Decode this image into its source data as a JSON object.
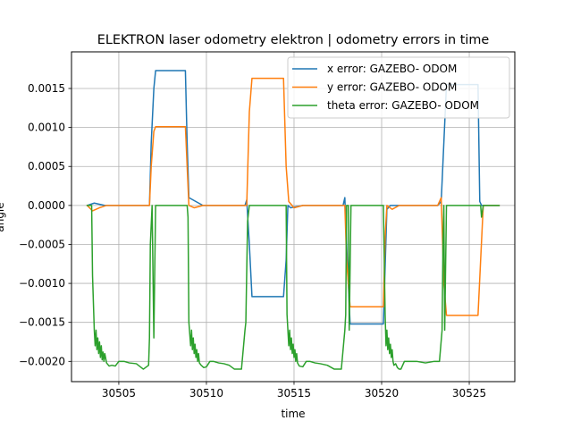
{
  "chart_data": {
    "type": "line",
    "title": "ELEKTRON laser odometry elektron | odometry errors in time",
    "xlabel": "time",
    "ylabel": "angle",
    "xlim": [
      30502.3,
      30527.6
    ],
    "ylim": [
      -0.00226,
      0.00197
    ],
    "xticks": [
      30505,
      30510,
      30515,
      30520,
      30525
    ],
    "yticks": [
      -0.002,
      -0.0015,
      -0.001,
      -0.0005,
      0.0,
      0.0005,
      0.001,
      0.0015
    ],
    "ytick_labels": [
      "−0.0020",
      "−0.0015",
      "−0.0010",
      "−0.0005",
      "0.0000",
      "0.0005",
      "0.0010",
      "0.0015"
    ],
    "grid": true,
    "legend_position": "upper right",
    "series": [
      {
        "name": "x error: GAZEBO- ODOM",
        "color": "#1f77b4",
        "x": [
          30503.2,
          30503.6,
          30504.2,
          30504.8,
          30505.5,
          30506.3,
          30506.75,
          30506.85,
          30507.0,
          30507.1,
          30508.8,
          30508.9,
          30509.0,
          30509.4,
          30509.8,
          30510.5,
          30511.2,
          30512.2,
          30512.3,
          30512.45,
          30512.6,
          30514.4,
          30514.55,
          30514.65,
          30514.8,
          30515.5,
          30516.5,
          30517.8,
          30517.9,
          30518.0,
          30518.2,
          30518.4,
          30520.1,
          30520.3,
          30520.5,
          30521.0,
          30522.0,
          30523.2,
          30523.4,
          30523.55,
          30523.7,
          30525.5,
          30525.6,
          30525.7,
          30526.7
        ],
        "y": [
          0.0,
          3e-05,
          0.0,
          0.0,
          0.0,
          0.0,
          0.0,
          0.0008,
          0.0015,
          0.00173,
          0.00173,
          0.0008,
          0.0001,
          5e-05,
          0.0,
          0.0,
          0.0,
          0.0,
          7e-05,
          -0.0005,
          -0.00117,
          -0.00117,
          -0.0007,
          0.0,
          -3e-05,
          0.0,
          0.0,
          0.0,
          0.0001,
          -0.0005,
          -0.00152,
          -0.00152,
          -0.00152,
          -5e-05,
          0.0,
          0.0,
          0.0,
          0.0,
          5e-05,
          0.0008,
          0.00155,
          0.00155,
          5e-05,
          0.0,
          0.0
        ]
      },
      {
        "name": "y error: GAZEBO- ODOM",
        "color": "#ff7f0e",
        "x": [
          30503.2,
          30503.5,
          30503.9,
          30504.3,
          30504.8,
          30505.5,
          30506.3,
          30506.75,
          30506.85,
          30507.0,
          30507.1,
          30508.8,
          30508.9,
          30509.0,
          30509.3,
          30509.8,
          30510.5,
          30511.2,
          30512.2,
          30512.3,
          30512.45,
          30512.6,
          30514.4,
          30514.55,
          30514.7,
          30515.0,
          30515.5,
          30516.5,
          30517.8,
          30517.9,
          30518.0,
          30518.2,
          30520.1,
          30520.2,
          30520.3,
          30520.6,
          30521.0,
          30522.0,
          30523.2,
          30523.4,
          30523.55,
          30523.7,
          30525.5,
          30525.65,
          30525.8,
          30526.7
        ],
        "y": [
          0.0,
          -7e-05,
          -3e-05,
          0.0,
          0.0,
          0.0,
          0.0,
          0.0,
          0.0005,
          0.00095,
          0.00101,
          0.00101,
          0.0005,
          0.0,
          -3e-05,
          0.0,
          0.0,
          0.0,
          0.0,
          0.0,
          0.0012,
          0.00163,
          0.00163,
          0.0005,
          5e-05,
          -3e-05,
          0.0,
          0.0,
          0.0,
          0.0,
          -0.0007,
          -0.0013,
          -0.0013,
          -0.0004,
          0.0,
          -5e-05,
          0.0,
          0.0,
          0.0,
          0.0001,
          -0.001,
          -0.00141,
          -0.00141,
          -0.0007,
          0.0,
          0.0
        ]
      },
      {
        "name": "theta error: GAZEBO- ODOM",
        "color": "#2ca02c",
        "x": [
          30503.2,
          30503.45,
          30503.5,
          30503.6,
          30503.65,
          30503.7,
          30503.75,
          30503.8,
          30503.85,
          30503.9,
          30503.95,
          30504.0,
          30504.05,
          30504.1,
          30504.15,
          30504.2,
          30504.3,
          30504.45,
          30504.6,
          30504.8,
          30505.0,
          30505.3,
          30505.6,
          30506.0,
          30506.4,
          30506.7,
          30506.75,
          30506.8,
          30506.9,
          30507.0,
          30507.1,
          30507.2,
          30508.9,
          30508.95,
          30509.0,
          30509.1,
          30509.15,
          30509.2,
          30509.25,
          30509.3,
          30509.35,
          30509.4,
          30509.45,
          30509.5,
          30509.55,
          30509.6,
          30509.7,
          30509.85,
          30510.0,
          30510.2,
          30510.4,
          30510.7,
          30511.0,
          30511.3,
          30511.6,
          30512.0,
          30512.2,
          30512.25,
          30512.35,
          30512.45,
          30512.5,
          30512.6,
          30512.7,
          30514.55,
          30514.6,
          30514.7,
          30514.75,
          30514.8,
          30514.85,
          30514.9,
          30514.95,
          30515.0,
          30515.05,
          30515.1,
          30515.15,
          30515.2,
          30515.3,
          30515.5,
          30515.7,
          30515.9,
          30516.2,
          30516.5,
          30516.9,
          30517.3,
          30517.7,
          30517.9,
          30517.95,
          30518.0,
          30518.1,
          30518.15,
          30518.25,
          30518.3,
          30520.1,
          30520.2,
          30520.25,
          30520.3,
          30520.35,
          30520.4,
          30520.45,
          30520.5,
          30520.55,
          30520.6,
          30520.65,
          30520.7,
          30520.8,
          30520.9,
          30521.0,
          30521.1,
          30521.3,
          30521.6,
          30522.0,
          30522.5,
          30523.0,
          30523.3,
          30523.45,
          30523.5,
          30523.55,
          30523.6,
          30523.7,
          30523.8,
          30525.65,
          30525.7,
          30525.8,
          30525.9,
          30526.7
        ],
        "y": [
          0.0,
          0.0,
          -0.0009,
          -0.0016,
          -0.0018,
          -0.0016,
          -0.00185,
          -0.0017,
          -0.0019,
          -0.00175,
          -0.00195,
          -0.0018,
          -0.00198,
          -0.00188,
          -0.002,
          -0.0019,
          -0.00202,
          -0.00206,
          -0.00205,
          -0.00206,
          -0.002,
          -0.002,
          -0.00202,
          -0.00203,
          -0.0021,
          -0.00205,
          -0.0017,
          -0.0005,
          0.0,
          -0.0017,
          0.0,
          0.0,
          0.0,
          -0.00015,
          -0.0015,
          -0.0018,
          -0.0016,
          -0.00185,
          -0.0017,
          -0.0019,
          -0.00178,
          -0.00195,
          -0.00185,
          -0.002,
          -0.0019,
          -0.00202,
          -0.00205,
          -0.00208,
          -0.00207,
          -0.002,
          -0.002,
          -0.00202,
          -0.00203,
          -0.00205,
          -0.0021,
          -0.0021,
          -0.0016,
          -0.0015,
          -0.0002,
          0.0,
          0.0,
          0.0,
          0.0,
          0.0,
          -0.0014,
          -0.0018,
          -0.0016,
          -0.00185,
          -0.0017,
          -0.0019,
          -0.00178,
          -0.00195,
          -0.00185,
          -0.002,
          -0.0019,
          -0.00202,
          -0.00206,
          -0.00207,
          -0.002,
          -0.002,
          -0.00202,
          -0.00203,
          -0.00205,
          -0.0021,
          -0.0021,
          -0.0016,
          -0.0014,
          0.0,
          0.0,
          -0.0016,
          0.0,
          0.0,
          0.0,
          -0.0014,
          -0.0018,
          -0.0016,
          -0.00185,
          -0.0017,
          -0.0019,
          -0.00178,
          -0.00195,
          -0.00185,
          -0.002,
          -0.00205,
          -0.00203,
          -0.00208,
          -0.0021,
          -0.0021,
          -0.002,
          -0.002,
          -0.002,
          -0.00202,
          -0.002,
          -0.002,
          -0.0016,
          -0.0005,
          0.0,
          -0.0016,
          0.0,
          0.0,
          0.0,
          -0.00015,
          0.0,
          0.0,
          0.0
        ]
      }
    ]
  }
}
